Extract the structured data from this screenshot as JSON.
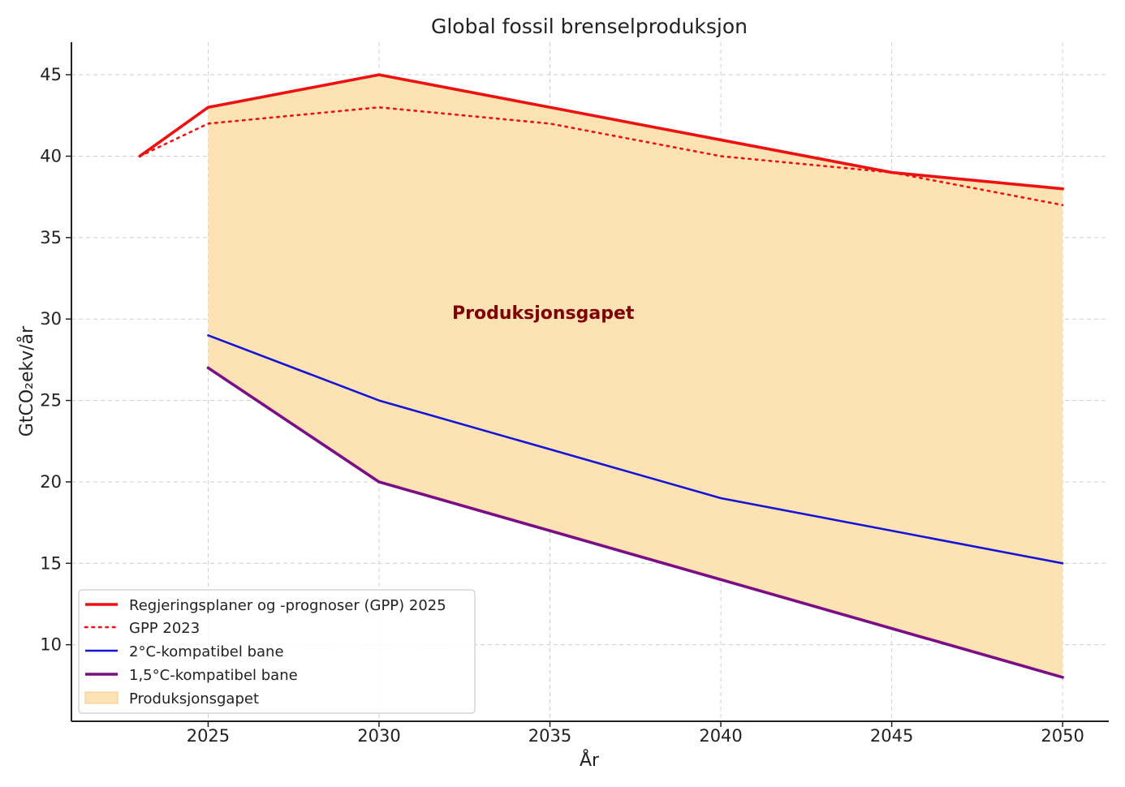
{
  "chart_data": {
    "type": "line",
    "title": "Global fossil brenselproduksjon",
    "xlabel": "År",
    "ylabel": "GtCO₂ekv/år",
    "xlim": [
      2021,
      2051.35
    ],
    "ylim": [
      5.3,
      47
    ],
    "xticks": [
      2025,
      2030,
      2035,
      2040,
      2045,
      2050
    ],
    "yticks": [
      10,
      15,
      20,
      25,
      30,
      35,
      40,
      45
    ],
    "grid": true,
    "legend_position": "lower-left",
    "series": [
      {
        "name": "Regjeringsplaner og -prognoser (GPP) 2025",
        "style": "solid",
        "color": "#ee1111",
        "x": [
          2023,
          2025,
          2030,
          2035,
          2040,
          2045,
          2050
        ],
        "values": [
          40,
          43,
          45,
          43,
          41,
          39,
          38
        ]
      },
      {
        "name": "GPP 2023",
        "style": "dotted",
        "color": "#ee1111",
        "x": [
          2023,
          2025,
          2030,
          2035,
          2040,
          2045,
          2050
        ],
        "values": [
          40,
          42,
          43,
          42,
          40,
          39,
          37
        ]
      },
      {
        "name": "2°C-kompatibel bane",
        "style": "solid",
        "color": "#1515d8",
        "x": [
          2025,
          2030,
          2035,
          2040,
          2045,
          2050
        ],
        "values": [
          29,
          25,
          22,
          19,
          17,
          15
        ]
      },
      {
        "name": "1,5°C-kompatibel bane",
        "style": "solid",
        "color": "#7b0d85",
        "x": [
          2025,
          2030,
          2035,
          2040,
          2045,
          2050
        ],
        "values": [
          27,
          20,
          17,
          14,
          11,
          8
        ]
      }
    ],
    "fill": {
      "name": "Produksjonsgapet",
      "color": "#fde2b3",
      "x": [
        2025,
        2030,
        2035,
        2040,
        2045,
        2050
      ],
      "upper": [
        43,
        45,
        43,
        41,
        39,
        38
      ],
      "lower": [
        27,
        20,
        17,
        14,
        11,
        8
      ]
    },
    "annotation": {
      "text": "Produksjonsgapet",
      "x": 2032,
      "y": 30.4,
      "color": "#800000"
    }
  }
}
